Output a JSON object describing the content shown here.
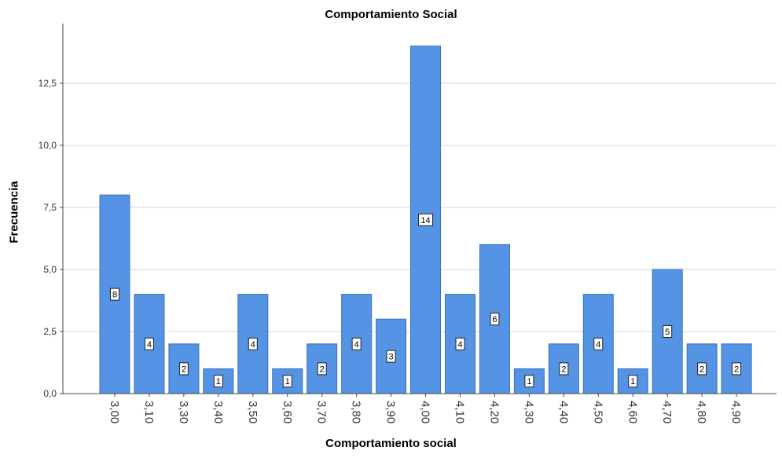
{
  "chart_data": {
    "type": "bar",
    "title": "Comportamiento Social",
    "xlabel": "Comportamiento social",
    "ylabel": "Frecuencia",
    "categories": [
      "3,00",
      "3,10",
      "3,30",
      "3,40",
      "3,50",
      "3,60",
      "3,70",
      "3,80",
      "3,90",
      "4,00",
      "4,10",
      "4,20",
      "4,30",
      "4,40",
      "4,50",
      "4,60",
      "4,70",
      "4,80",
      "4,90"
    ],
    "values": [
      8,
      4,
      2,
      1,
      4,
      1,
      2,
      4,
      3,
      14,
      4,
      6,
      1,
      2,
      4,
      1,
      5,
      2,
      2
    ],
    "data_labels": [
      "8",
      "4",
      "2",
      "1",
      "4",
      "1",
      "2",
      "4",
      "3",
      "14",
      "4",
      "6",
      "1",
      "2",
      "4",
      "1",
      "5",
      "2",
      "2"
    ],
    "yticks": [
      "0,0",
      "2,5",
      "5,0",
      "7,5",
      "10,0",
      "12,5"
    ],
    "ylim": [
      0,
      14
    ],
    "grid": true,
    "legend": "none",
    "bar_color": "#5593e4",
    "bar_edge_color": "#3a70bd"
  }
}
